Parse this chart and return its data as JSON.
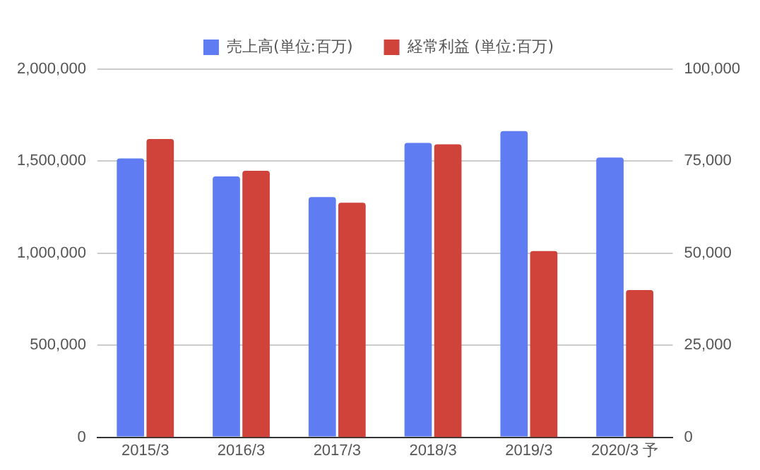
{
  "chart_data": {
    "type": "bar",
    "categories": [
      "2015/3",
      "2016/3",
      "2017/3",
      "2018/3",
      "2019/3",
      "2020/3 予"
    ],
    "series": [
      {
        "name": "売上高(単位:百万)",
        "color": "#5f7cf2",
        "values": [
          1515000,
          1417000,
          1305000,
          1599000,
          1664000,
          1520000
        ]
      },
      {
        "name": "経常利益 (単位:百万)",
        "color": "#d0433a",
        "axis": "y2",
        "values": [
          81000,
          72400,
          63700,
          79600,
          50600,
          40000
        ]
      }
    ],
    "ylim": [
      0,
      2000000
    ],
    "yticks": [
      0,
      {
        "value": 500000,
        "label": "500,000"
      },
      {
        "value": 1000000,
        "label": "1,000,000"
      },
      {
        "value": 1500000,
        "label": "1,500,000"
      },
      {
        "value": 2000000,
        "label": "2,000,000"
      }
    ],
    "y2lim": [
      0,
      100000
    ],
    "y2ticks": [
      0,
      {
        "value": 25000,
        "label": "25,000"
      },
      {
        "value": 50000,
        "label": "50,000"
      },
      {
        "value": 75000,
        "label": "75,000"
      },
      {
        "value": 100000,
        "label": "100,000"
      }
    ],
    "grid": "y",
    "legend": "top"
  }
}
